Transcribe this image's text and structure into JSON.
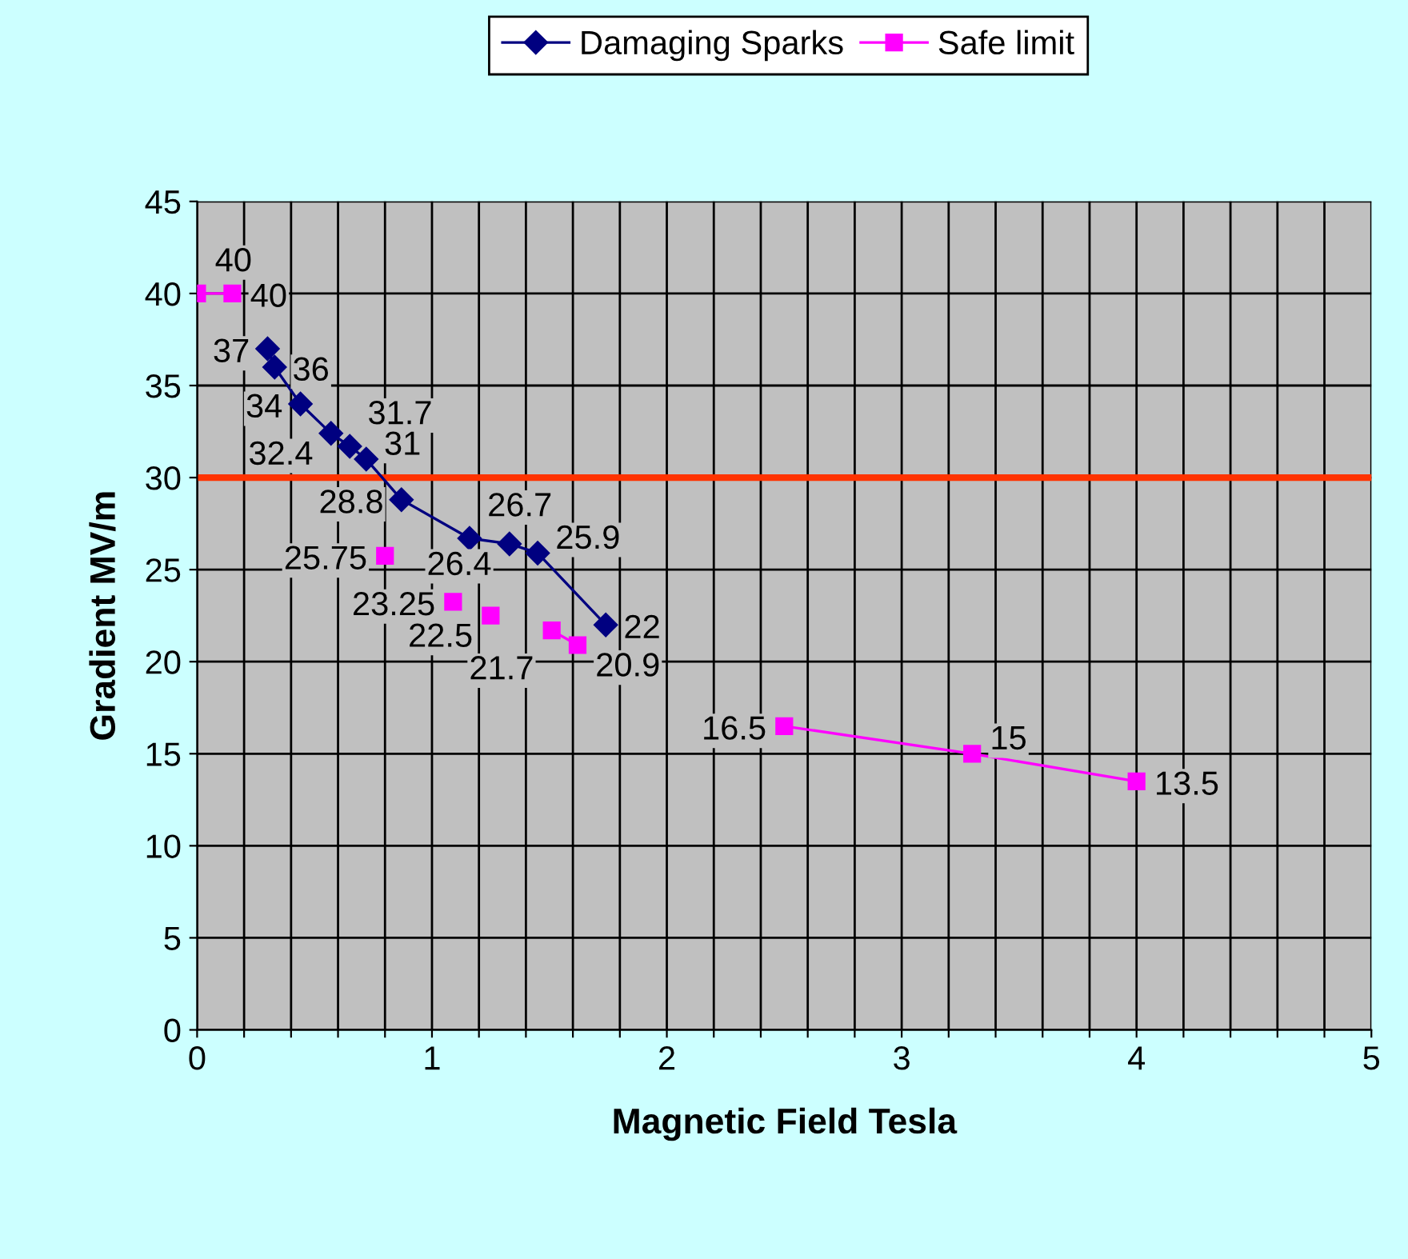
{
  "chart_data": {
    "type": "line",
    "xlabel": "Magnetic Field Tesla",
    "ylabel": "Gradient MV/m",
    "series": [
      {
        "name": "Damaging Sparks",
        "color": "#000080",
        "marker": "diamond",
        "x": [
          0.3,
          0.33,
          0.44,
          0.57,
          0.65,
          0.72,
          0.87,
          1.16,
          1.33,
          1.45,
          1.74
        ],
        "values": [
          37,
          36,
          34,
          32.4,
          31.7,
          31,
          28.8,
          26.7,
          26.4,
          25.9,
          22
        ]
      },
      {
        "name": "Safe limit",
        "color": "#ff00ff",
        "marker": "square",
        "x": [
          0,
          0.15,
          0.5,
          0.8,
          0.95,
          1.09,
          1.17,
          1.25,
          1.38,
          1.51,
          1.62,
          2.0,
          2.5,
          3.3,
          4
        ],
        "values": [
          40,
          40,
          null,
          25.75,
          null,
          23.25,
          null,
          22.5,
          null,
          21.7,
          20.9,
          null,
          16.5,
          15,
          13.5
        ]
      }
    ],
    "data_labels": true,
    "xlim": [
      0,
      5
    ],
    "ylim": [
      0,
      45
    ],
    "xticks": [
      0,
      {
        "value": 0.2,
        "label": null
      },
      {
        "value": 0.4,
        "label": null
      },
      {
        "value": 0.6,
        "label": null
      },
      {
        "value": 0.8,
        "label": null
      },
      1,
      {
        "value": 1.2,
        "label": null
      },
      {
        "value": 1.4,
        "label": null
      },
      {
        "value": 1.6,
        "label": null
      },
      {
        "value": 1.8,
        "label": null
      },
      2,
      {
        "value": 2.2,
        "label": null
      },
      {
        "value": 2.4,
        "label": null
      },
      {
        "value": 2.6,
        "label": null
      },
      {
        "value": 2.8,
        "label": null
      },
      3,
      {
        "value": 3.2,
        "label": null
      },
      {
        "value": 3.4,
        "label": null
      },
      {
        "value": 3.6,
        "label": null
      },
      {
        "value": 3.8,
        "label": null
      },
      4,
      {
        "value": 4.2,
        "label": null
      },
      {
        "value": 4.4,
        "label": null
      },
      {
        "value": 4.6,
        "label": null
      },
      {
        "value": 4.8,
        "label": null
      },
      5
    ],
    "yticks": [
      0,
      5,
      10,
      15,
      20,
      25,
      30,
      35,
      40,
      45
    ],
    "grid": true,
    "legend": "top",
    "ref_lines": [
      {
        "axis": "y",
        "value": 30,
        "color": "#ff3300",
        "line_style": "solid"
      }
    ]
  }
}
